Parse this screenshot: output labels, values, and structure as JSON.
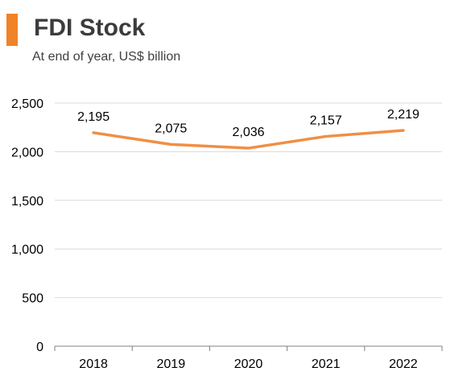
{
  "header": {
    "title": "FDI Stock",
    "subtitle": "At end of year, US$ billion"
  },
  "colors": {
    "accent": "#f08228",
    "line": "#ef8f45",
    "grid": "#d9d9d9",
    "axis": "#7f7f7f",
    "text": "#000000"
  },
  "chart_data": {
    "type": "line",
    "title": "FDI Stock",
    "subtitle": "At end of year, US$ billion",
    "categories": [
      "2018",
      "2019",
      "2020",
      "2021",
      "2022"
    ],
    "series": [
      {
        "values": [
          2195,
          2075,
          2036,
          2157,
          2219
        ],
        "labels": [
          "2,195",
          "2,075",
          "2,036",
          "2,157",
          "2,219"
        ]
      }
    ],
    "yticks": [
      0,
      500,
      1000,
      1500,
      2000,
      2500
    ],
    "ytick_labels": [
      "0",
      "500",
      "1,000",
      "1,500",
      "2,000",
      "2,500"
    ],
    "ylim": [
      0,
      2500
    ],
    "xlabel": "",
    "ylabel": "",
    "grid": true,
    "legend": "none"
  }
}
